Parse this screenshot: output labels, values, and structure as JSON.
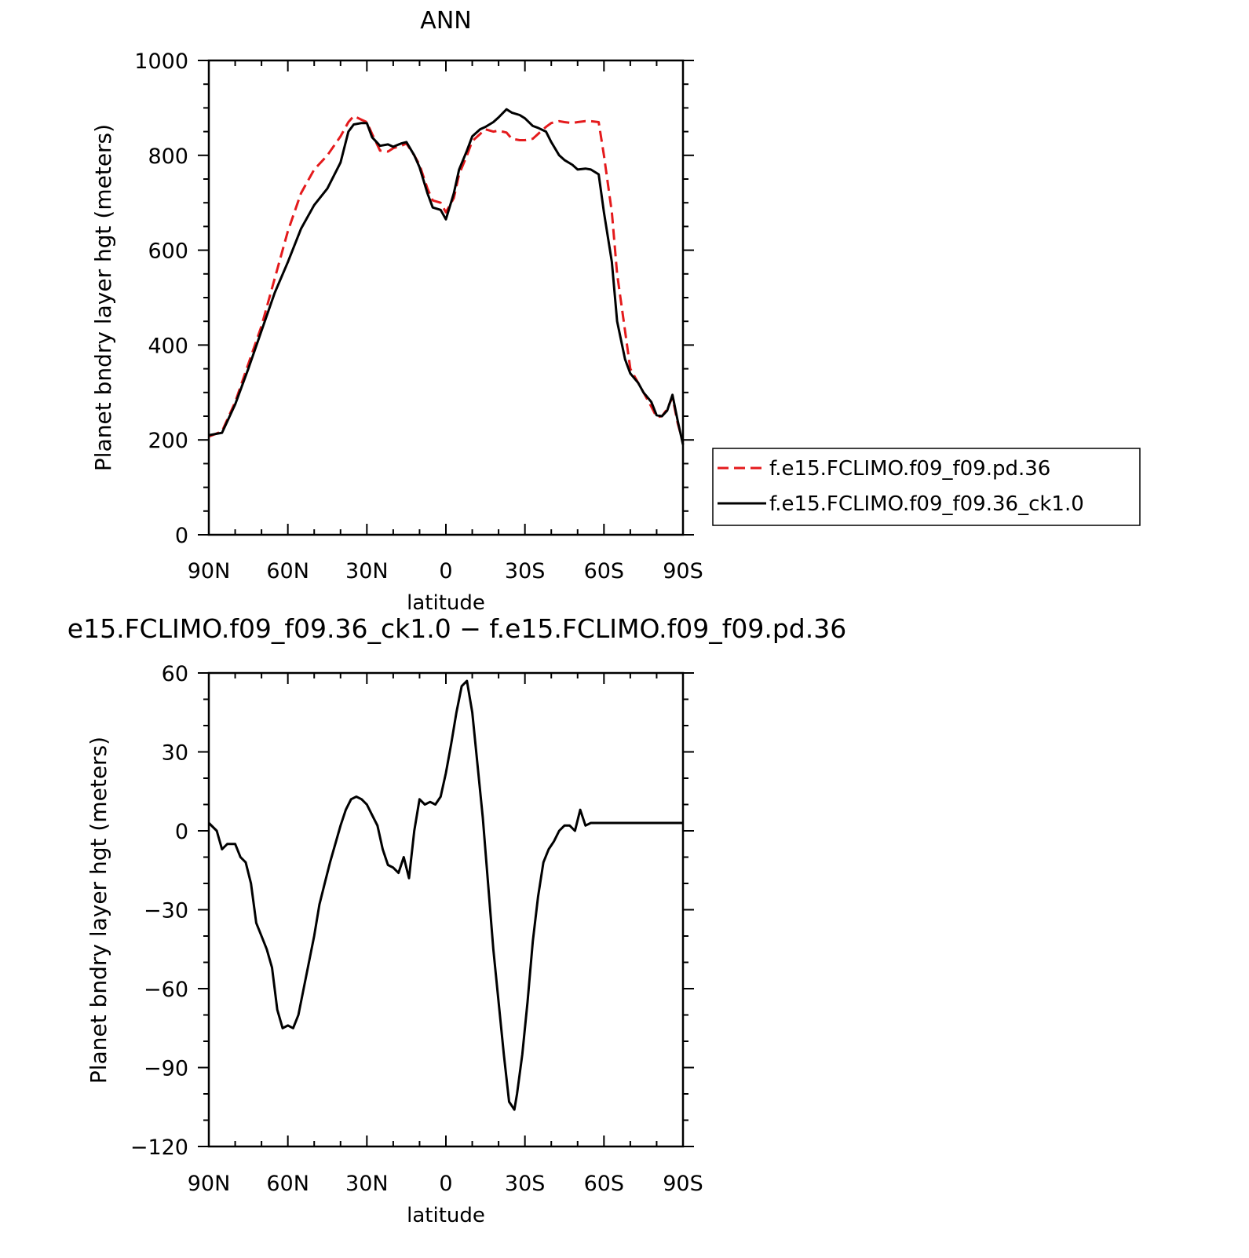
{
  "chart_data": [
    {
      "type": "line",
      "title": "ANN",
      "xlabel": "latitude",
      "ylabel": "Planet bndry layer hgt (meters)",
      "x_ticks": [
        {
          "value": 90,
          "label": "90N"
        },
        {
          "value": 60,
          "label": "60N"
        },
        {
          "value": 30,
          "label": "30N"
        },
        {
          "value": 0,
          "label": "0"
        },
        {
          "value": -30,
          "label": "30S"
        },
        {
          "value": -60,
          "label": "60S"
        },
        {
          "value": -90,
          "label": "90S"
        }
      ],
      "y_ticks": [
        0,
        200,
        400,
        600,
        800,
        1000
      ],
      "xlim": [
        90,
        -90
      ],
      "ylim": [
        0,
        1000
      ],
      "legend": "right-outside",
      "series": [
        {
          "name": "f.e15.FCLIMO.f09_f09.pd.36",
          "color": "#e41a1c",
          "dash": "dashed",
          "x": [
            90,
            85,
            80,
            75,
            70,
            65,
            60,
            55,
            50,
            45,
            40,
            37,
            35,
            32,
            30,
            28,
            25,
            22,
            20,
            17,
            15,
            12,
            10,
            7,
            5,
            2,
            0,
            -3,
            -5,
            -8,
            -10,
            -13,
            -15,
            -18,
            -20,
            -23,
            -25,
            -28,
            -30,
            -33,
            -35,
            -38,
            -40,
            -43,
            -45,
            -48,
            -50,
            -53,
            -55,
            -58,
            -60,
            -63,
            -65,
            -68,
            -70,
            -73,
            -75,
            -78,
            -80,
            -82,
            -84,
            -86,
            -88,
            -90
          ],
          "y": [
            207,
            218,
            280,
            360,
            440,
            540,
            640,
            720,
            770,
            800,
            840,
            870,
            883,
            875,
            870,
            845,
            810,
            808,
            815,
            820,
            825,
            800,
            780,
            730,
            705,
            700,
            680,
            710,
            760,
            800,
            830,
            845,
            855,
            850,
            852,
            848,
            835,
            832,
            832,
            835,
            845,
            860,
            868,
            872,
            870,
            868,
            870,
            872,
            872,
            870,
            800,
            680,
            550,
            430,
            350,
            320,
            300,
            270,
            248,
            250,
            265,
            290,
            235,
            195
          ]
        },
        {
          "name": "f.e15.FCLIMO.f09_f09.36_ck1.0",
          "color": "#000000",
          "dash": "solid",
          "x": [
            90,
            85,
            80,
            75,
            70,
            65,
            60,
            55,
            50,
            45,
            40,
            37,
            35,
            32,
            30,
            28,
            25,
            22,
            20,
            17,
            15,
            12,
            10,
            7,
            5,
            2,
            0,
            -3,
            -5,
            -8,
            -10,
            -13,
            -15,
            -18,
            -20,
            -23,
            -25,
            -28,
            -30,
            -33,
            -35,
            -38,
            -40,
            -43,
            -45,
            -48,
            -50,
            -53,
            -55,
            -58,
            -60,
            -63,
            -65,
            -68,
            -70,
            -73,
            -75,
            -78,
            -80,
            -82,
            -84,
            -86,
            -88,
            -90
          ],
          "y": [
            210,
            215,
            275,
            350,
            430,
            510,
            575,
            645,
            695,
            730,
            785,
            850,
            865,
            868,
            868,
            838,
            820,
            823,
            818,
            825,
            828,
            800,
            775,
            720,
            690,
            685,
            665,
            720,
            770,
            810,
            840,
            855,
            860,
            870,
            880,
            897,
            890,
            885,
            878,
            862,
            858,
            850,
            828,
            800,
            790,
            780,
            770,
            772,
            770,
            760,
            680,
            575,
            450,
            370,
            340,
            320,
            300,
            280,
            252,
            250,
            262,
            295,
            240,
            190
          ]
        }
      ]
    },
    {
      "type": "line",
      "title": "e15.FCLIMO.f09_f09.36_ck1.0 − f.e15.FCLIMO.f09_f09.pd.36",
      "xlabel": "latitude",
      "ylabel": "Planet bndry layer hgt (meters)",
      "x_ticks": [
        {
          "value": 90,
          "label": "90N"
        },
        {
          "value": 60,
          "label": "60N"
        },
        {
          "value": 30,
          "label": "30N"
        },
        {
          "value": 0,
          "label": "0"
        },
        {
          "value": -30,
          "label": "30S"
        },
        {
          "value": -60,
          "label": "60S"
        },
        {
          "value": -90,
          "label": "90S"
        }
      ],
      "y_ticks": [
        {
          "value": 60,
          "label": "60"
        },
        {
          "value": 30,
          "label": "30"
        },
        {
          "value": 0,
          "label": "0"
        },
        {
          "value": -30,
          "label": "−30"
        },
        {
          "value": -60,
          "label": "−60"
        },
        {
          "value": -90,
          "label": "−90"
        },
        {
          "value": -120,
          "label": "−120"
        }
      ],
      "xlim": [
        90,
        -90
      ],
      "ylim": [
        -120,
        60
      ],
      "series": [
        {
          "color": "#000000",
          "dash": "solid",
          "x": [
            90,
            87,
            85,
            83,
            80,
            78,
            76,
            74,
            72,
            70,
            68,
            66,
            64,
            62,
            60,
            58,
            56,
            54,
            52,
            50,
            48,
            46,
            44,
            42,
            40,
            38,
            36,
            34,
            32,
            30,
            28,
            26,
            24,
            22,
            20,
            18,
            16,
            14,
            12,
            10,
            8,
            6,
            4,
            2,
            0,
            -2,
            -4,
            -6,
            -8,
            -10,
            -12,
            -14,
            -16,
            -18,
            -20,
            -22,
            -24,
            -26,
            -27,
            -29,
            -31,
            -33,
            -35,
            -37,
            -39,
            -41,
            -43,
            -45,
            -47,
            -49,
            -51,
            -53,
            -55,
            -57,
            -59,
            -61,
            -63,
            -65,
            -67,
            -69,
            -71,
            -73,
            -75,
            -77,
            -79,
            -81,
            -83,
            -85,
            -86,
            -87,
            -88,
            -90
          ],
          "y": [
            3,
            0,
            -7,
            -5,
            -5,
            -10,
            -12,
            -20,
            -35,
            -40,
            -45,
            -52,
            -68,
            -75,
            -74,
            -75,
            -70,
            -60,
            -50,
            -40,
            -28,
            -20,
            -12,
            -5,
            2,
            8,
            12,
            13,
            12,
            10,
            6,
            2,
            -7,
            -13,
            -14,
            -16,
            -10,
            -18,
            0,
            12,
            10,
            11,
            10,
            13,
            22,
            33,
            45,
            55,
            57,
            45,
            25,
            5,
            -20,
            -45,
            -65,
            -85,
            -103,
            -106,
            -100,
            -85,
            -65,
            -42,
            -25,
            -12,
            -7,
            -4,
            0,
            2,
            2,
            0,
            8,
            2,
            3,
            3,
            3,
            3,
            3,
            3,
            3,
            3,
            3,
            3,
            3,
            3,
            3,
            3,
            3,
            3,
            3,
            3,
            3,
            3
          ]
        }
      ]
    }
  ]
}
